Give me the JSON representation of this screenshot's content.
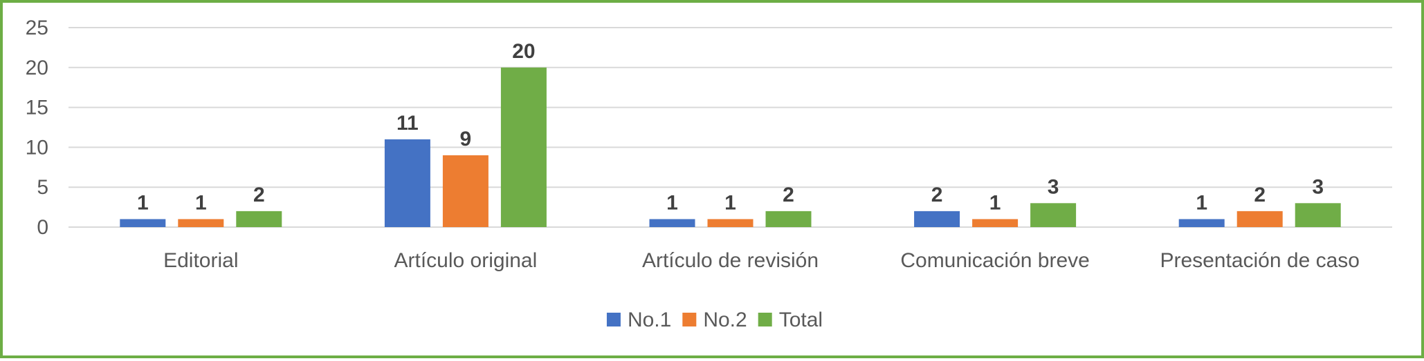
{
  "chart_data": {
    "type": "bar",
    "categories": [
      "Editorial",
      "Artículo original",
      "Artículo de revisión",
      "Comunicación breve",
      "Presentación de caso"
    ],
    "series": [
      {
        "name": "No.1",
        "values": [
          1,
          11,
          1,
          2,
          1
        ],
        "color": "#4472C4"
      },
      {
        "name": "No.2",
        "values": [
          1,
          9,
          1,
          1,
          2
        ],
        "color": "#ED7D31"
      },
      {
        "name": "Total",
        "values": [
          2,
          20,
          2,
          3,
          3
        ],
        "color": "#70AD47"
      }
    ],
    "ylim": [
      0,
      25
    ],
    "yticks": [
      0,
      5,
      10,
      15,
      20,
      25
    ],
    "grid": true,
    "legend_position": "bottom",
    "data_labels": true,
    "frame_color": "#6DAE45"
  }
}
